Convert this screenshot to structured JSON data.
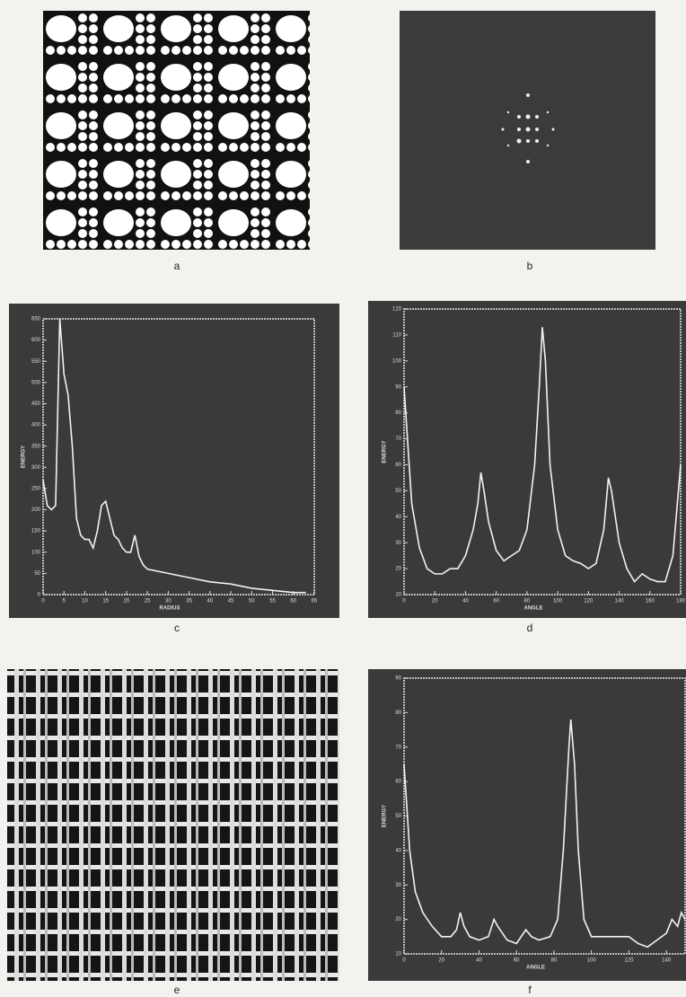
{
  "figure_labels": {
    "a": "a",
    "b": "b",
    "e": "e"
  },
  "chart_data": [
    {
      "type": "line",
      "label": "c",
      "x_label": "RADIUS",
      "y_label": "ENERGY",
      "color": "#f2f2f2",
      "x": [
        0,
        1,
        2,
        3,
        4,
        5,
        6,
        7,
        8,
        9,
        10,
        11,
        12,
        13,
        14,
        15,
        16,
        17,
        18,
        19,
        20,
        21,
        22,
        23,
        24,
        25,
        30,
        35,
        40,
        45,
        50,
        55,
        60,
        63
      ],
      "values": [
        270,
        210,
        200,
        210,
        650,
        520,
        470,
        350,
        180,
        140,
        130,
        130,
        110,
        150,
        210,
        220,
        180,
        140,
        130,
        110,
        100,
        100,
        140,
        90,
        70,
        60,
        50,
        40,
        30,
        25,
        15,
        10,
        5,
        5
      ],
      "xlim": [
        0,
        65
      ],
      "xticks": [
        0,
        5,
        10,
        15,
        20,
        25,
        30,
        35,
        40,
        45,
        50,
        55,
        60,
        65
      ],
      "ylim": [
        0,
        650
      ],
      "yticks": [
        0,
        50,
        100,
        150,
        200,
        250,
        300,
        350,
        400,
        450,
        500,
        550,
        600,
        650
      ]
    },
    {
      "type": "line",
      "label": "d",
      "x_label": "ANGLE",
      "y_label": "ENERGY",
      "color": "#f2f2f2",
      "x": [
        0,
        5,
        10,
        15,
        20,
        25,
        30,
        35,
        40,
        45,
        48,
        50,
        52,
        55,
        60,
        65,
        70,
        75,
        80,
        85,
        88,
        90,
        92,
        95,
        100,
        105,
        110,
        115,
        120,
        125,
        130,
        133,
        135,
        140,
        145,
        150,
        155,
        160,
        165,
        170,
        175,
        180
      ],
      "values": [
        90,
        45,
        28,
        20,
        18,
        18,
        20,
        20,
        25,
        35,
        45,
        57,
        50,
        38,
        27,
        23,
        25,
        27,
        35,
        60,
        90,
        113,
        100,
        60,
        35,
        25,
        23,
        22,
        20,
        22,
        35,
        55,
        50,
        30,
        20,
        15,
        18,
        16,
        15,
        15,
        25,
        60
      ],
      "xlim": [
        0,
        180
      ],
      "xticks": [
        0,
        20,
        40,
        60,
        80,
        100,
        120,
        140,
        160,
        180
      ],
      "ylim": [
        10,
        120
      ],
      "yticks": [
        10,
        20,
        30,
        40,
        50,
        60,
        70,
        80,
        90,
        100,
        110,
        120
      ]
    },
    {
      "type": "line",
      "label": "f",
      "x_label": "ANGLE",
      "y_label": "ENERGY",
      "color": "#f2f2f2",
      "x": [
        0,
        3,
        6,
        10,
        15,
        20,
        25,
        28,
        30,
        32,
        35,
        40,
        45,
        48,
        50,
        55,
        60,
        65,
        68,
        72,
        78,
        82,
        85,
        88,
        89,
        91,
        93,
        96,
        100,
        110,
        120,
        125,
        130,
        135,
        140,
        143,
        146,
        148,
        150
      ],
      "values": [
        65,
        40,
        28,
        22,
        18,
        15,
        15,
        17,
        22,
        18,
        15,
        14,
        15,
        20,
        18,
        14,
        13,
        17,
        15,
        14,
        15,
        20,
        40,
        70,
        78,
        65,
        40,
        20,
        15,
        15,
        15,
        13,
        12,
        14,
        16,
        20,
        18,
        22,
        20
      ],
      "xlim": [
        0,
        150
      ],
      "xticks": [
        0,
        20,
        40,
        60,
        80,
        100,
        120,
        140
      ],
      "ylim": [
        10,
        90
      ],
      "yticks": [
        10,
        20,
        30,
        40,
        50,
        60,
        70,
        80,
        90
      ]
    }
  ]
}
